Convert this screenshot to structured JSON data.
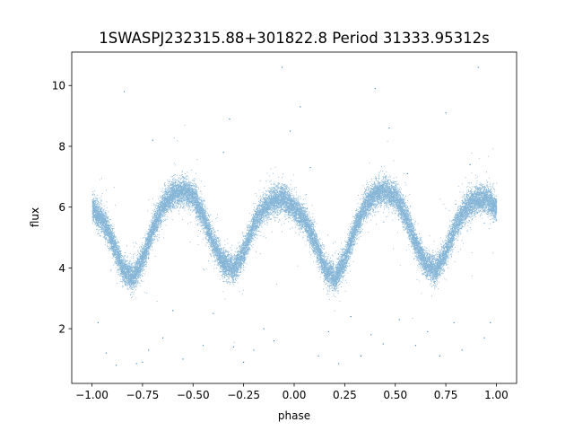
{
  "chart_data": {
    "type": "scatter",
    "title": "1SWASPJ232315.88+301822.8 Period 31333.95312s",
    "xlabel": "phase",
    "ylabel": "flux",
    "xlim": [
      -1.1,
      1.1
    ],
    "ylim": [
      0.2,
      11.1
    ],
    "x_ticks": [
      -1.0,
      -0.75,
      -0.5,
      -0.25,
      0.0,
      0.25,
      0.5,
      0.75,
      1.0
    ],
    "x_tick_labels": [
      "−1.00",
      "−0.75",
      "−0.50",
      "−0.25",
      "0.00",
      "0.25",
      "0.50",
      "0.75",
      "1.00"
    ],
    "y_ticks": [
      2,
      4,
      6,
      8,
      10
    ],
    "y_tick_labels": [
      "2",
      "4",
      "6",
      "8",
      "10"
    ],
    "grid": false,
    "legend": "none",
    "colors": {
      "points": "#1f77b4"
    },
    "series": [
      {
        "marker": "point",
        "trend": [
          [
            -1.0,
            5.95
          ],
          [
            -0.95,
            5.6
          ],
          [
            -0.9,
            4.9
          ],
          [
            -0.85,
            4.0
          ],
          [
            -0.8,
            3.65
          ],
          [
            -0.75,
            4.3
          ],
          [
            -0.7,
            5.3
          ],
          [
            -0.65,
            6.05
          ],
          [
            -0.6,
            6.45
          ],
          [
            -0.55,
            6.55
          ],
          [
            -0.5,
            6.35
          ],
          [
            -0.45,
            5.7
          ],
          [
            -0.4,
            4.8
          ],
          [
            -0.35,
            4.15
          ],
          [
            -0.3,
            3.95
          ],
          [
            -0.25,
            4.55
          ],
          [
            -0.2,
            5.45
          ],
          [
            -0.15,
            6.0
          ],
          [
            -0.1,
            6.25
          ],
          [
            -0.05,
            6.3
          ],
          [
            0.0,
            5.95
          ],
          [
            0.05,
            5.6
          ],
          [
            0.1,
            4.9
          ],
          [
            0.15,
            4.0
          ],
          [
            0.2,
            3.65
          ],
          [
            0.25,
            4.3
          ],
          [
            0.3,
            5.3
          ],
          [
            0.35,
            6.05
          ],
          [
            0.4,
            6.45
          ],
          [
            0.45,
            6.55
          ],
          [
            0.5,
            6.35
          ],
          [
            0.55,
            5.7
          ],
          [
            0.6,
            4.8
          ],
          [
            0.65,
            4.15
          ],
          [
            0.7,
            3.95
          ],
          [
            0.75,
            4.55
          ],
          [
            0.8,
            5.45
          ],
          [
            0.85,
            6.0
          ],
          [
            0.9,
            6.25
          ],
          [
            0.95,
            6.3
          ],
          [
            1.0,
            5.95
          ]
        ],
        "scatter_width": 0.22,
        "n_points": 26000,
        "outliers": [
          [
            -0.97,
            2.2
          ],
          [
            -0.93,
            1.2
          ],
          [
            -0.88,
            0.8
          ],
          [
            -0.84,
            9.8
          ],
          [
            -0.78,
            0.85
          ],
          [
            -0.75,
            0.9
          ],
          [
            -0.72,
            1.3
          ],
          [
            -0.7,
            8.2
          ],
          [
            -0.65,
            1.7
          ],
          [
            -0.6,
            2.6
          ],
          [
            -0.55,
            1.0
          ],
          [
            -0.45,
            1.45
          ],
          [
            -0.4,
            2.5
          ],
          [
            -0.35,
            7.8
          ],
          [
            -0.32,
            8.9
          ],
          [
            -0.3,
            1.4
          ],
          [
            -0.25,
            0.9
          ],
          [
            -0.2,
            1.3
          ],
          [
            -0.15,
            2.0
          ],
          [
            -0.1,
            1.6
          ],
          [
            -0.06,
            10.6
          ],
          [
            -0.02,
            8.5
          ],
          [
            0.03,
            9.3
          ],
          [
            0.08,
            7.3
          ],
          [
            0.12,
            1.1
          ],
          [
            0.17,
            1.9
          ],
          [
            0.22,
            0.85
          ],
          [
            0.28,
            2.4
          ],
          [
            0.33,
            1.1
          ],
          [
            0.38,
            1.8
          ],
          [
            0.4,
            9.9
          ],
          [
            0.44,
            1.5
          ],
          [
            0.47,
            8.6
          ],
          [
            0.52,
            2.3
          ],
          [
            0.56,
            7.1
          ],
          [
            0.6,
            1.45
          ],
          [
            0.66,
            1.9
          ],
          [
            0.72,
            1.1
          ],
          [
            0.75,
            9.1
          ],
          [
            0.79,
            2.2
          ],
          [
            0.83,
            1.3
          ],
          [
            0.87,
            7.4
          ],
          [
            0.91,
            10.6
          ],
          [
            0.94,
            1.7
          ],
          [
            0.97,
            2.2
          ]
        ]
      }
    ]
  }
}
